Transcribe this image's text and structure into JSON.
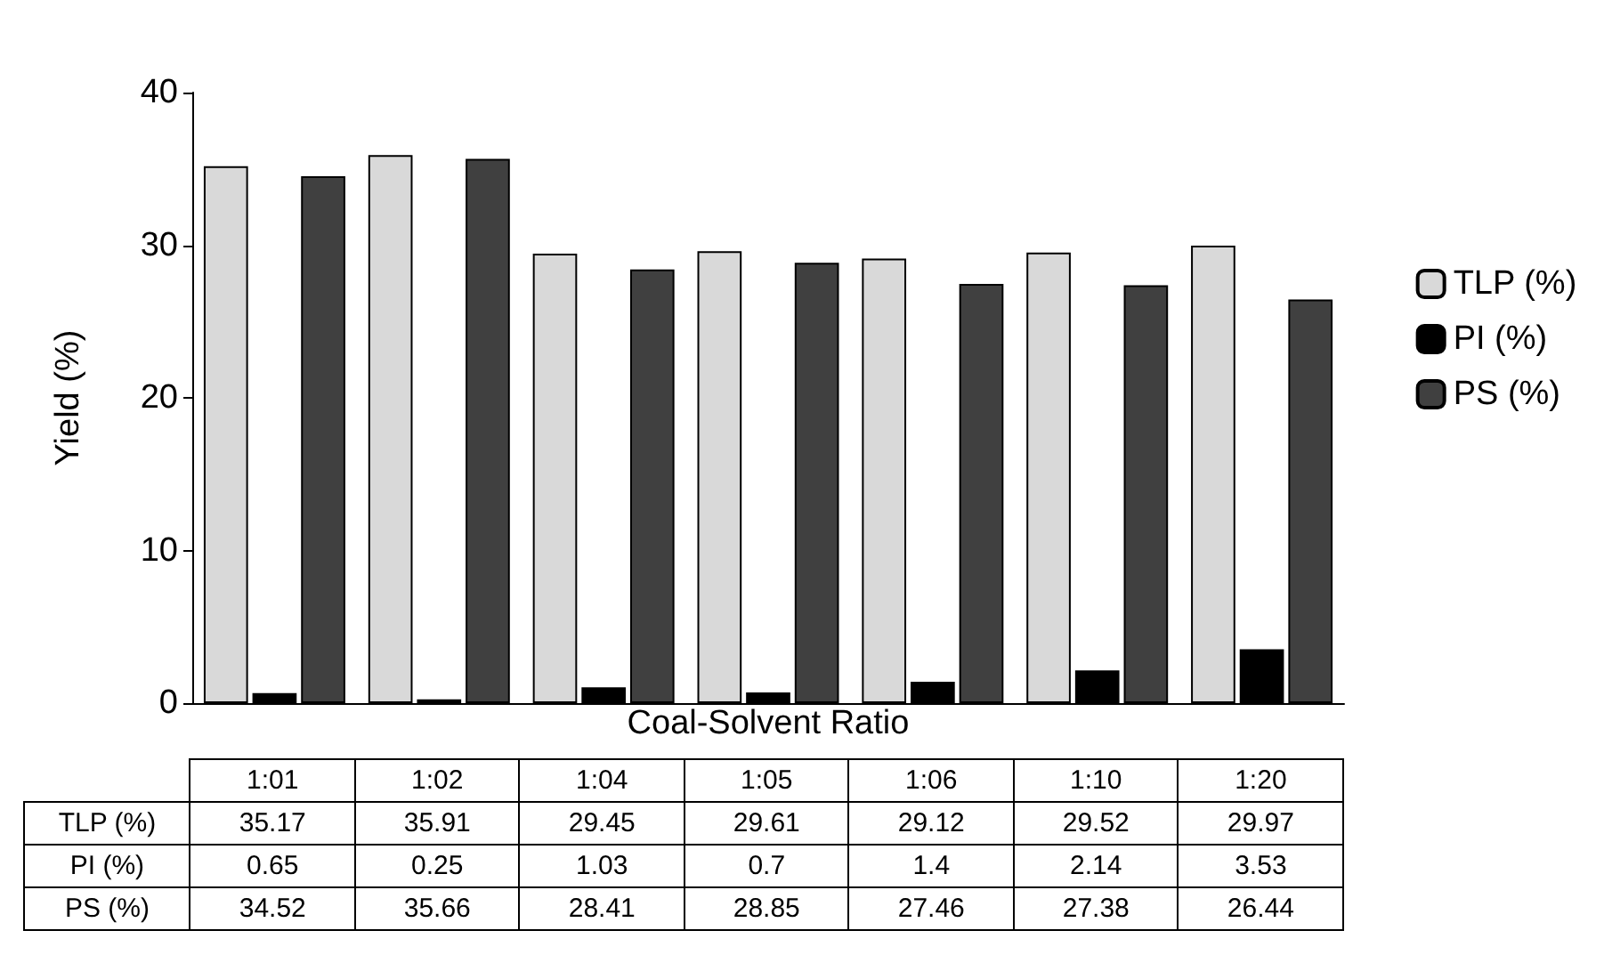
{
  "chart_data": {
    "type": "bar",
    "xlabel": "Coal-Solvent Ratio",
    "ylabel": "Yield (%)",
    "categories": [
      "1:01",
      "1:02",
      "1:04",
      "1:05",
      "1:06",
      "1:10",
      "1:20"
    ],
    "series": [
      {
        "name": "TLP (%)",
        "color": "#d9d9d9",
        "values": [
          35.17,
          35.91,
          29.45,
          29.61,
          29.12,
          29.52,
          29.97
        ]
      },
      {
        "name": "PI (%)",
        "color": "#000000",
        "values": [
          0.65,
          0.25,
          1.03,
          0.7,
          1.4,
          2.14,
          3.53
        ]
      },
      {
        "name": "PS (%)",
        "color": "#404040",
        "values": [
          34.52,
          35.66,
          28.41,
          28.85,
          27.46,
          27.38,
          26.44
        ]
      }
    ],
    "ylim": [
      0,
      40
    ],
    "yticks": [
      0,
      10,
      20,
      30,
      40
    ],
    "grid": false,
    "legend": "right",
    "data_labels": true
  }
}
